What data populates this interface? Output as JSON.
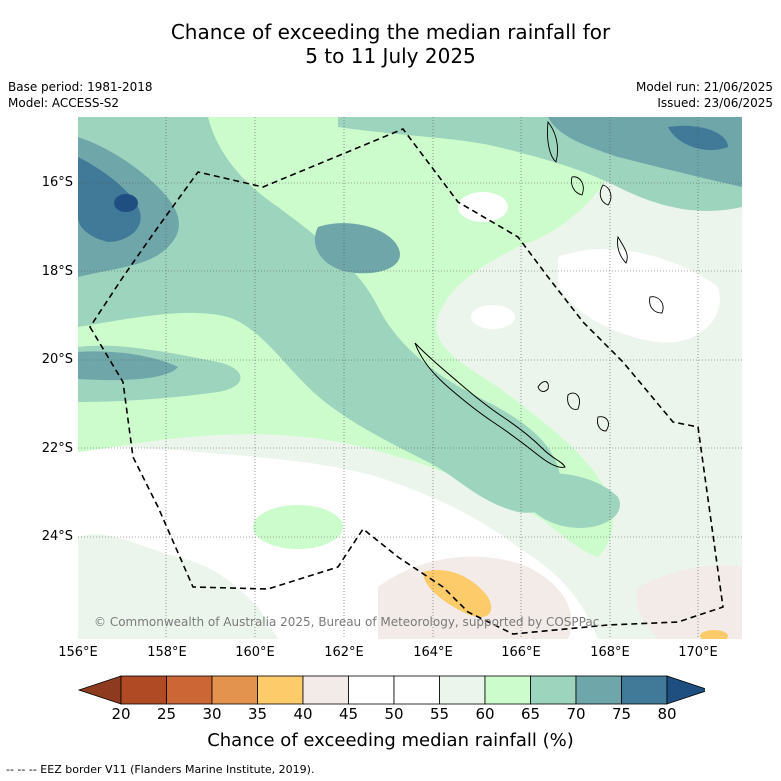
{
  "title_line1": "Chance of exceeding the median rainfall for",
  "title_line2": "5 to 11 July 2025",
  "base_period": "Base period: 1981-2018",
  "model": "Model: ACCESS-S2",
  "model_run": "Model run: 21/06/2025",
  "issued": "Issued: 23/06/2025",
  "copyright": "© Commonwealth of Australia 2025, Bureau of Meteorology, supported by COSPPac",
  "lat_labels": [
    "16°S",
    "18°S",
    "20°S",
    "22°S",
    "24°S"
  ],
  "lon_labels": [
    "156°E",
    "158°E",
    "160°E",
    "162°E",
    "164°E",
    "166°E",
    "168°E",
    "170°E"
  ],
  "colorbar": {
    "ticks": [
      "20",
      "25",
      "30",
      "35",
      "40",
      "45",
      "50",
      "55",
      "60",
      "65",
      "70",
      "75",
      "80"
    ],
    "colors": [
      "#b04a24",
      "#cc6634",
      "#e3934d",
      "#fdcb6a",
      "#f2ebe8",
      "#ffffff",
      "#ffffff",
      "#ecf5ec",
      "#ccfccc",
      "#9dd4bd",
      "#6fa6aa",
      "#417a99"
    ],
    "low_extend_color": "#8e3a1e",
    "high_extend_color": "#1f4f80",
    "label": "Chance of exceeding median rainfall (%)"
  },
  "legend_eez": "--  --  -- EEZ border V11 (Flanders Marine Institute, 2019)."
}
